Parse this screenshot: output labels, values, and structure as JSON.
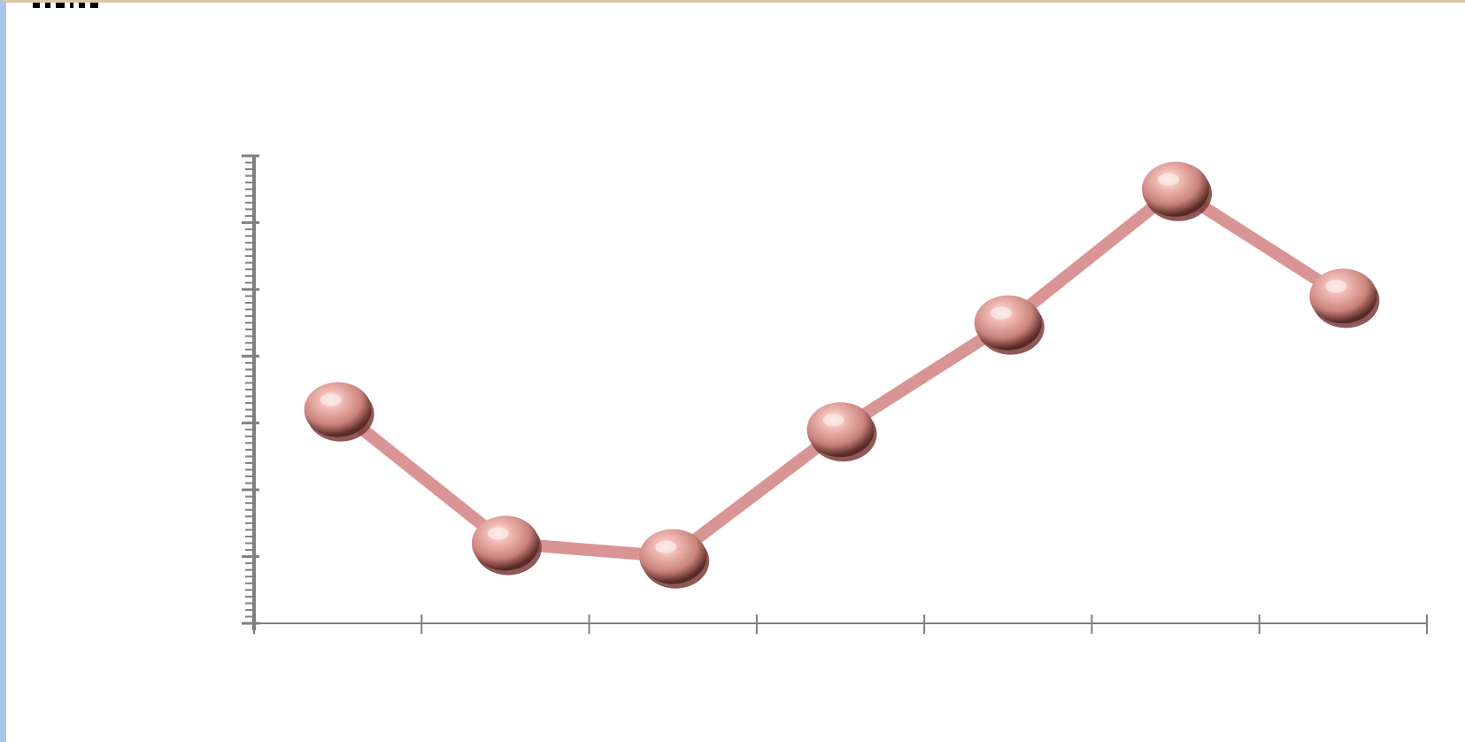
{
  "colors": {
    "line": "#d99594",
    "marker": "#e8a9a4",
    "marker_highlight": "#fbe7e4",
    "marker_shadow": "#7a3c38",
    "axis": "#808080",
    "frame_left": "#a9c6e8"
  },
  "chart_data": {
    "type": "line",
    "categories": [
      "",
      "",
      "",
      "",
      "",
      "",
      ""
    ],
    "series": [
      {
        "values": [
          3.2,
          1.2,
          1.0,
          2.9,
          4.5,
          6.5,
          4.9
        ],
        "marker": "sphere"
      }
    ],
    "xlabel": "",
    "ylabel": "",
    "ylim": [
      0,
      7
    ],
    "y_major_ticks": [
      0,
      1,
      2,
      3,
      4,
      5,
      6,
      7
    ],
    "y_minor_ticks_per_major": 5,
    "x_tick_count": 8,
    "grid": false,
    "legend": "none"
  }
}
